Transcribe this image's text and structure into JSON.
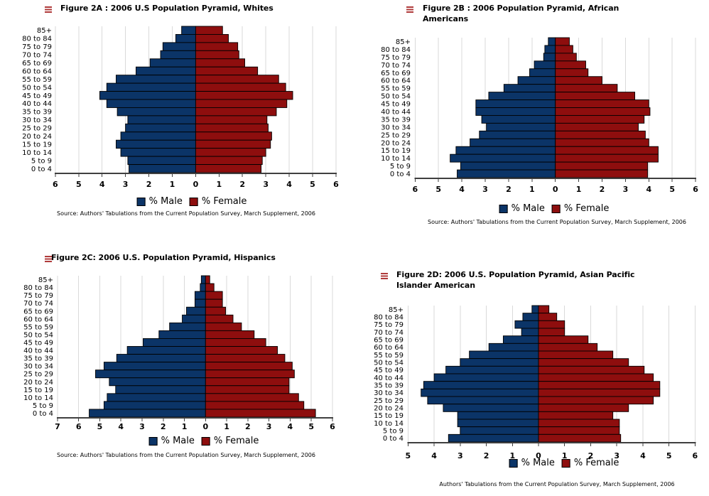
{
  "colors": {
    "male_bar": "#0B3467",
    "female_bar": "#8E0E0E",
    "figure_icon": "#B03B3B",
    "gridline": "#DADADA",
    "axis": "#3F3F3F",
    "bar_border": "#000000",
    "text": "#000000",
    "background": "#FFFFFF"
  },
  "chart_data": [
    {
      "type": "bar",
      "orientation": "horizontal-pyramid",
      "title": "Figure 2A : 2006 U.S Population Pyramid, Whites",
      "source": "Source: Authors' Tabulations from the Current Population Survey, March Supplement, 2006",
      "grid": true,
      "legend_position": "bottom",
      "xlim_male": 6,
      "xlim_female": 6,
      "tick_labels": [
        "6",
        "5",
        "4",
        "3",
        "2",
        "1",
        "0",
        "1",
        "2",
        "3",
        "4",
        "5",
        "6"
      ],
      "categories": [
        "85+",
        "80 to 84",
        "75 to 79",
        "70 to 74",
        "65 to 69",
        "60 to 64",
        "55 to 59",
        "50 to 54",
        "45 to 49",
        "40 to 44",
        "35 to 39",
        "30 to 34",
        "25 to 29",
        "20 to 24",
        "15 to 19",
        "10 to 14",
        "5 to 9",
        "0 to 4"
      ],
      "series": [
        {
          "name": "% Male",
          "side": "left",
          "values": [
            0.6,
            0.85,
            1.4,
            1.5,
            1.95,
            2.55,
            3.4,
            3.8,
            4.1,
            3.8,
            3.35,
            2.9,
            3.0,
            3.2,
            3.4,
            3.2,
            2.9,
            2.85
          ]
        },
        {
          "name": "% Female",
          "side": "right",
          "values": [
            1.15,
            1.4,
            1.8,
            1.85,
            2.1,
            2.65,
            3.55,
            3.85,
            4.15,
            3.9,
            3.45,
            3.05,
            3.1,
            3.25,
            3.2,
            3.0,
            2.85,
            2.8
          ]
        }
      ]
    },
    {
      "type": "bar",
      "orientation": "horizontal-pyramid",
      "title": "Figure 2B : 2006 Population Pyramid, African\nAmericans",
      "source": "Source: Authors' Tabulations from the Current Population Survey, March Supplement, 2006",
      "grid": true,
      "legend_position": "bottom",
      "xlim_male": 6,
      "xlim_female": 6,
      "tick_labels": [
        "6",
        "5",
        "4",
        "3",
        "2",
        "1",
        "0",
        "1",
        "2",
        "3",
        "4",
        "5",
        "6"
      ],
      "categories": [
        "85+",
        "80 to 84",
        "75 to 79",
        "70 to 74",
        "65 to 69",
        "60 to 64",
        "55 to 59",
        "50 to 54",
        "45 to 49",
        "40 to 44",
        "35 to 39",
        "30 to 34",
        "25 to 29",
        "20 to 24",
        "15 to 19",
        "10 to 14",
        "5 to 9",
        "0 to 4"
      ],
      "series": [
        {
          "name": "% Male",
          "side": "left",
          "values": [
            0.3,
            0.45,
            0.5,
            0.9,
            1.1,
            1.6,
            2.2,
            2.85,
            3.4,
            3.4,
            3.15,
            2.95,
            3.25,
            3.65,
            4.25,
            4.5,
            4.05,
            4.2
          ]
        },
        {
          "name": "% Female",
          "side": "right",
          "values": [
            0.6,
            0.75,
            0.9,
            1.3,
            1.4,
            2.0,
            2.65,
            3.4,
            4.0,
            4.05,
            3.8,
            3.55,
            3.85,
            4.0,
            4.4,
            4.4,
            3.95,
            3.95
          ]
        }
      ]
    },
    {
      "type": "bar",
      "orientation": "horizontal-pyramid",
      "title": "Figure 2C: 2006 U.S. Population Pyramid, Hispanics",
      "source": "Source: Authors' Tabulations from the Current Population Survey, March Supplement, 2006",
      "grid": true,
      "legend_position": "bottom",
      "xlim_male": 7,
      "xlim_female": 6,
      "tick_labels": [
        "7",
        "6",
        "5",
        "4",
        "3",
        "2",
        "1",
        "0",
        "1",
        "2",
        "3",
        "4",
        "5",
        "6"
      ],
      "categories": [
        "85+",
        "80 to 84",
        "75 to 79",
        "70 to 74",
        "65 to 69",
        "60 to 64",
        "55 to 59",
        "50 to 54",
        "45 to 49",
        "40 to 44",
        "35 to 39",
        "30 to 34",
        "25 to 29",
        "20 to 24",
        "15 to 19",
        "10 to 14",
        "5 to 9",
        "0 to 4"
      ],
      "series": [
        {
          "name": "% Male",
          "side": "left",
          "values": [
            0.2,
            0.25,
            0.5,
            0.5,
            0.9,
            1.1,
            1.7,
            2.2,
            2.95,
            3.7,
            4.2,
            4.8,
            5.2,
            4.55,
            4.25,
            4.65,
            4.8,
            5.5
          ]
        },
        {
          "name": "% Female",
          "side": "right",
          "values": [
            0.2,
            0.4,
            0.8,
            0.8,
            0.95,
            1.3,
            1.7,
            2.3,
            2.85,
            3.4,
            3.75,
            4.1,
            4.2,
            3.95,
            3.95,
            4.4,
            4.65,
            5.2
          ]
        }
      ]
    },
    {
      "type": "bar",
      "orientation": "horizontal-pyramid",
      "title": "Figure 2D: 2006 U.S. Population Pyramid, Asian Pacific\nIslander American",
      "source": "Authors' Tabulations from the Current Population Survey, March Supplement, 2006",
      "grid": true,
      "legend_position": "bottom",
      "xlim_male": 5,
      "xlim_female": 6,
      "tick_labels": [
        "5",
        "4",
        "3",
        "2",
        "1",
        "0",
        "1",
        "2",
        "3",
        "4",
        "5",
        "6"
      ],
      "categories": [
        "85+",
        "80 to 84",
        "75 to 79",
        "70 to 74",
        "65 to 69",
        "60 to 64",
        "55 to 59",
        "50 to 54",
        "45 to 49",
        "40 to 44",
        "35 to 39",
        "30 to 34",
        "25 to 29",
        "20 to 24",
        "15 to 19",
        "10 to 14",
        "5 to 9",
        "0 to 4"
      ],
      "series": [
        {
          "name": "% Male",
          "side": "left",
          "values": [
            0.25,
            0.6,
            0.9,
            0.65,
            1.35,
            1.9,
            2.65,
            3.0,
            3.55,
            4.0,
            4.4,
            4.5,
            4.25,
            3.65,
            3.1,
            3.1,
            3.0,
            3.45
          ]
        },
        {
          "name": "% Female",
          "side": "right",
          "values": [
            0.4,
            0.7,
            1.0,
            1.0,
            1.9,
            2.25,
            2.85,
            3.45,
            4.05,
            4.4,
            4.65,
            4.65,
            4.4,
            3.45,
            2.85,
            3.1,
            3.1,
            3.15
          ]
        }
      ]
    }
  ]
}
